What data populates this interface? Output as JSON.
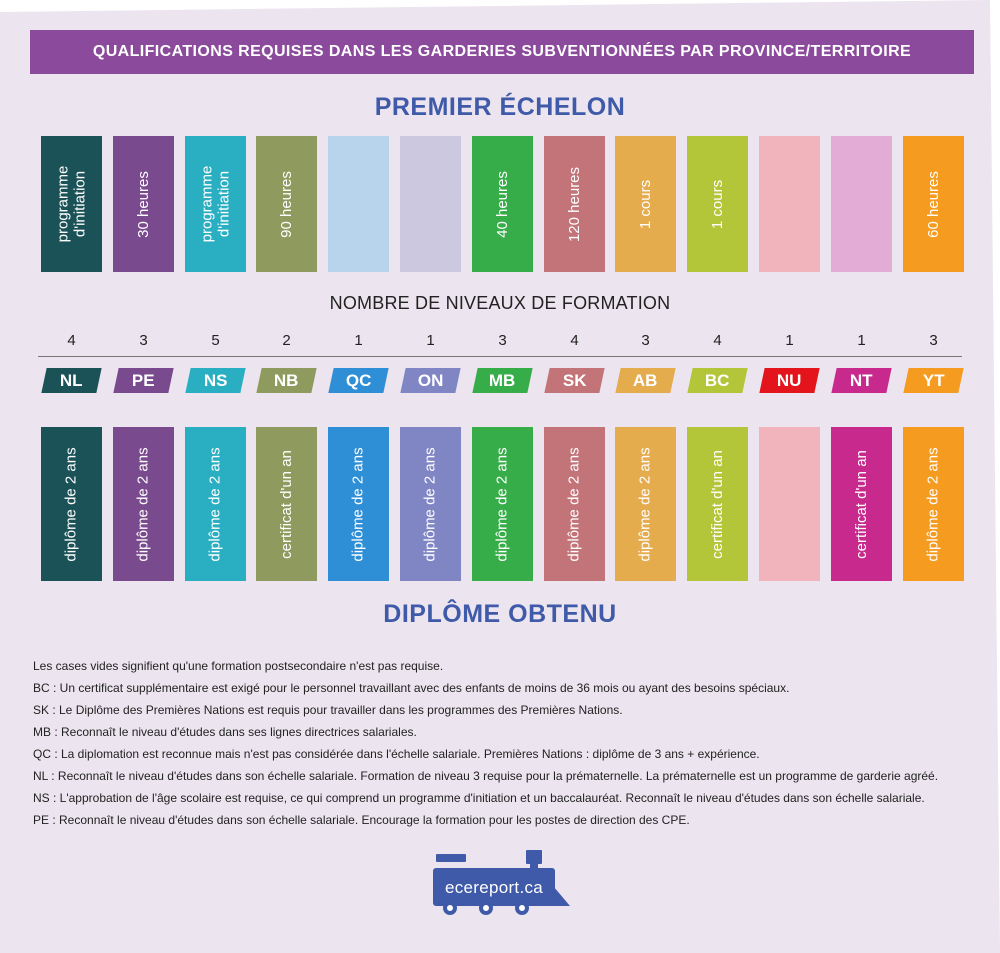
{
  "colors": {
    "background": "#ece4ee",
    "banner": "#8b4a9c",
    "heading": "#3f5aa8"
  },
  "banner": "QUALIFICATIONS REQUISES DANS LES GARDERIES SUBVENTIONNÉES PAR PROVINCE/TERRITOIRE",
  "heading_top": "PREMIER ÉCHELON",
  "subheading": "NOMBRE DE NIVEAUX DE FORMATION",
  "heading_bottom": "DIPLÔME OBTENU",
  "provinces": [
    {
      "code": "NL",
      "levels": "4",
      "entry": "programme\nd'initiation",
      "diploma": "diplôme de 2 ans",
      "code_color": "#1b5258",
      "entry_color": "#1b5258",
      "diploma_color": "#1b5258"
    },
    {
      "code": "PE",
      "levels": "3",
      "entry": "30 heures",
      "diploma": "diplôme de 2 ans",
      "code_color": "#7a4a8e",
      "entry_color": "#7a4a8e",
      "diploma_color": "#7a4a8e"
    },
    {
      "code": "NS",
      "levels": "5",
      "entry": "programme\nd'initiation",
      "diploma": "diplôme de 2 ans",
      "code_color": "#2aafc2",
      "entry_color": "#2aafc2",
      "diploma_color": "#2aafc2"
    },
    {
      "code": "NB",
      "levels": "2",
      "entry": "90 heures",
      "diploma": "certificat d'un an",
      "code_color": "#8f9a5e",
      "entry_color": "#8f9a5e",
      "diploma_color": "#8f9a5e"
    },
    {
      "code": "QC",
      "levels": "1",
      "entry": "",
      "diploma": "diplôme de 2 ans",
      "code_color": "#2e8fd6",
      "entry_color": "#b8d3ec",
      "diploma_color": "#2e8fd6"
    },
    {
      "code": "ON",
      "levels": "1",
      "entry": "",
      "diploma": "diplôme de 2 ans",
      "code_color": "#8085c4",
      "entry_color": "#ccc8e0",
      "diploma_color": "#8085c4"
    },
    {
      "code": "MB",
      "levels": "3",
      "entry": "40 heures",
      "diploma": "diplôme de 2 ans",
      "code_color": "#37ad4a",
      "entry_color": "#37ad4a",
      "diploma_color": "#37ad4a"
    },
    {
      "code": "SK",
      "levels": "4",
      "entry": "120 heures",
      "diploma": "diplôme de 2 ans",
      "code_color": "#c27478",
      "entry_color": "#c27478",
      "diploma_color": "#c27478"
    },
    {
      "code": "AB",
      "levels": "3",
      "entry": "1 cours",
      "diploma": "diplôme de 2 ans",
      "code_color": "#e5ac4e",
      "entry_color": "#e5ac4e",
      "diploma_color": "#e5ac4e"
    },
    {
      "code": "BC",
      "levels": "4",
      "entry": "1 cours",
      "diploma": "certificat d'un an",
      "code_color": "#b3c63a",
      "entry_color": "#b3c63a",
      "diploma_color": "#b3c63a"
    },
    {
      "code": "NU",
      "levels": "1",
      "entry": "",
      "diploma": "",
      "code_color": "#e3141b",
      "entry_color": "#f1b4bd",
      "diploma_color": "#f1b4bd"
    },
    {
      "code": "NT",
      "levels": "1",
      "entry": "",
      "diploma": "certificat d'un an",
      "code_color": "#c72a8c",
      "entry_color": "#e3acd6",
      "diploma_color": "#c72a8c"
    },
    {
      "code": "YT",
      "levels": "3",
      "entry": "60 heures",
      "diploma": "diplôme de 2 ans",
      "code_color": "#f59b1f",
      "entry_color": "#f59b1f",
      "diploma_color": "#f59b1f"
    }
  ],
  "notes": [
    "Les cases vides signifient qu'une formation postsecondaire n'est pas requise.",
    "BC : Un certificat supplémentaire est exigé pour le personnel travaillant avec des enfants de moins de 36 mois ou ayant des besoins spéciaux.",
    "SK : Le Diplôme des Premières Nations est requis pour travailler dans les programmes des Premières Nations.",
    "MB : Reconnaît le niveau d'études dans ses lignes directrices salariales.",
    "QC : La diplomation est reconnue mais n'est pas considérée dans l'échelle salariale. Premières Nations : diplôme de 3 ans + expérience.",
    "NL : Reconnaît le niveau d'études dans son échelle salariale. Formation de niveau 3 requise pour la prématernelle. La prématernelle est un programme de garderie agréé.",
    "NS : L'approbation de l'âge scolaire est requise, ce qui comprend un programme d'initiation et un baccalauréat. Reconnaît le niveau d'études dans son échelle salariale.",
    "PE : Reconnaît le niveau d'études dans son échelle salariale. Encourage la formation pour les postes de direction des CPE."
  ],
  "logo": {
    "text": "ecereport.ca",
    "icon": "train-icon",
    "color": "#3f5aa8"
  }
}
